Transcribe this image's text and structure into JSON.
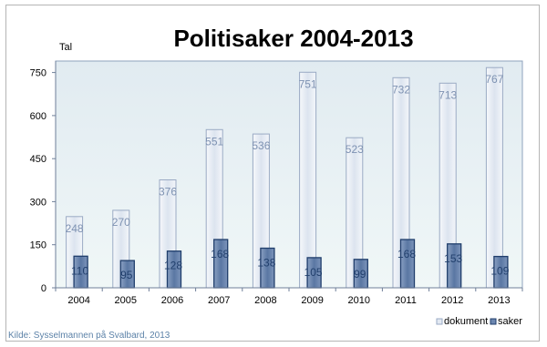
{
  "chart_data": {
    "type": "bar",
    "title": "Politisaker 2004-2013",
    "ylabel": "Tal",
    "xlabel": "",
    "categories": [
      "2004",
      "2005",
      "2006",
      "2007",
      "2008",
      "2009",
      "2010",
      "2011",
      "2012",
      "2013"
    ],
    "series": [
      {
        "name": "dokument",
        "values": [
          248,
          270,
          376,
          551,
          536,
          751,
          523,
          732,
          713,
          767
        ]
      },
      {
        "name": "saker",
        "values": [
          110,
          95,
          128,
          168,
          138,
          105,
          99,
          168,
          153,
          109
        ]
      }
    ],
    "ylim": [
      0,
      790
    ],
    "yticks": [
      0,
      150,
      300,
      450,
      600,
      750
    ],
    "grid": false,
    "legend_position": "bottom-right",
    "source": "Kilde: Sysselmannen på Svalbard, 2013",
    "colors": {
      "dokument_fill": "#e3e9f2",
      "dokument_stroke": "#9aaac4",
      "saker_fill": "#6c87b0",
      "saker_stroke": "#1f3d6b",
      "plot_bg_top": "#e1ebf1",
      "plot_bg_bottom": "#f0f7f7",
      "dokument_label": "#7e92b2",
      "saker_label": "#22406d",
      "source_text": "#5c82a8"
    }
  }
}
